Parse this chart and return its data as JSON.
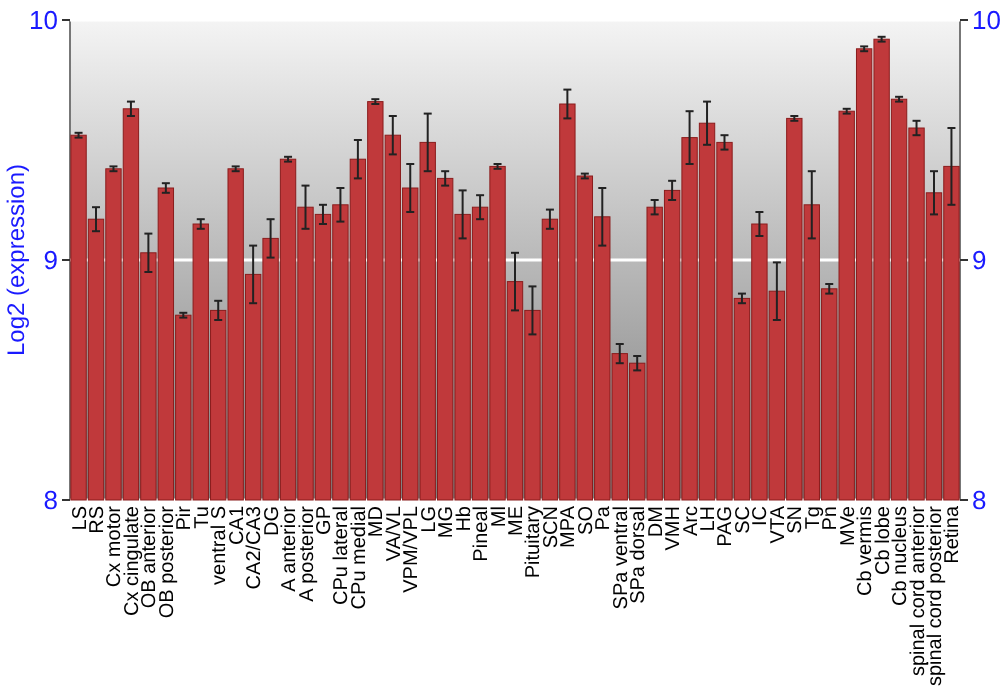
{
  "chart_data": {
    "type": "bar",
    "ylabel": "Log2 (expression)",
    "ylim": [
      8,
      10
    ],
    "yticks": [
      8,
      9,
      10
    ],
    "y2lim": [
      8,
      10
    ],
    "y2ticks": [
      8,
      9,
      10
    ],
    "grid": "y",
    "color": "#c0393b",
    "categories": [
      "LS",
      "RS",
      "Cx motor",
      "Cx cingulate",
      "OB anterior",
      "OB posterior",
      "Pir",
      "Tu",
      "ventral S",
      "CA1",
      "CA2/CA3",
      "DG",
      "A anterior",
      "A posterior",
      "GP",
      "CPu lateral",
      "CPu medial",
      "MD",
      "VA/VL",
      "VPM/VPL",
      "LG",
      "MG",
      "Hb",
      "Pineal",
      "Ml",
      "ME",
      "Pituitary",
      "SCN",
      "MPA",
      "SO",
      "Pa",
      "SPa ventral",
      "SPa dorsal",
      "DM",
      "VMH",
      "Arc",
      "LH",
      "PAG",
      "SC",
      "IC",
      "VTA",
      "SN",
      "Tg",
      "Pn",
      "MVe",
      "Cb vermis",
      "Cb lobe",
      "Cb nucleus",
      "spinal cord anterior",
      "spinal cord posterior",
      "Retina"
    ],
    "values": [
      9.52,
      9.17,
      9.38,
      9.63,
      9.03,
      9.3,
      8.77,
      9.15,
      8.79,
      9.38,
      8.94,
      9.09,
      9.42,
      9.22,
      9.19,
      9.23,
      9.42,
      9.66,
      9.52,
      9.3,
      9.49,
      9.34,
      9.19,
      9.22,
      9.39,
      8.91,
      8.79,
      9.17,
      9.65,
      9.35,
      9.18,
      8.61,
      8.57,
      9.22,
      9.29,
      9.51,
      9.57,
      9.49,
      8.84,
      9.15,
      8.87,
      9.59,
      9.23,
      8.88,
      9.62,
      9.88,
      9.92,
      9.67,
      9.55,
      9.28,
      9.39
    ],
    "errors": [
      0.01,
      0.05,
      0.01,
      0.03,
      0.08,
      0.02,
      0.01,
      0.02,
      0.04,
      0.01,
      0.12,
      0.08,
      0.01,
      0.09,
      0.04,
      0.07,
      0.08,
      0.01,
      0.08,
      0.1,
      0.12,
      0.03,
      0.1,
      0.05,
      0.01,
      0.12,
      0.1,
      0.04,
      0.06,
      0.01,
      0.12,
      0.04,
      0.03,
      0.03,
      0.04,
      0.11,
      0.09,
      0.03,
      0.02,
      0.05,
      0.12,
      0.01,
      0.14,
      0.02,
      0.01,
      0.01,
      0.01,
      0.01,
      0.03,
      0.09,
      0.16
    ]
  }
}
